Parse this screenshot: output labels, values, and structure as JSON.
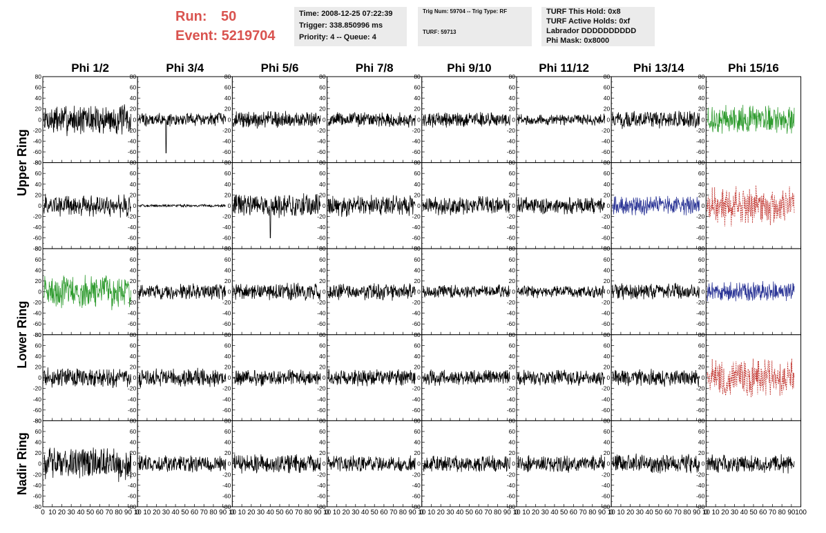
{
  "header": {
    "run_label": "Run:",
    "run_value": "50",
    "event_label": "Event:",
    "event_value": "5219704",
    "box1": [
      "Time: 2008-12-25 07:22:39",
      "Trigger: 338.850996 ms",
      "Priority: 4 -- Queue: 4"
    ],
    "box2": [
      "Trig Num: 59704 -- Trig Type: RF",
      "",
      "",
      "TURF: 59713"
    ],
    "box3": [
      "TURF This Hold: 0x8",
      "TURF Active Holds: 0xf",
      "Labrador DDDDDDDDDD",
      "Phi Mask: 0x8000"
    ]
  },
  "colors": {
    "normal": "#000000",
    "green": "#2e9b2e",
    "blue": "#2b3596",
    "red": "#c0302a"
  },
  "chart_data": {
    "type": "line",
    "columns": [
      "Phi 1/2",
      "Phi 3/4",
      "Phi 5/6",
      "Phi 7/8",
      "Phi 9/10",
      "Phi 11/12",
      "Phi 13/14",
      "Phi 15/16"
    ],
    "row_groups": [
      {
        "label": "Upper Ring",
        "rows": [
          0,
          1
        ]
      },
      {
        "label": "Lower Ring",
        "rows": [
          2,
          3
        ]
      },
      {
        "label": "Nadir Ring",
        "rows": [
          4
        ]
      }
    ],
    "xlim": [
      0,
      100
    ],
    "x_ticks": [
      "0",
      "10",
      "20",
      "30",
      "40",
      "50",
      "60",
      "70",
      "80",
      "90",
      "100"
    ],
    "x_ticks_compact": [
      "0",
      "10",
      "20",
      "30",
      "40",
      "50",
      "60",
      "70",
      "80",
      "90",
      "10"
    ],
    "ylim": [
      -80,
      80
    ],
    "y_ticks": [
      -80,
      -60,
      -40,
      -20,
      0,
      20,
      40,
      60,
      80
    ],
    "panels": [
      [
        {
          "amp": 22,
          "color": "normal"
        },
        {
          "amp": 10,
          "color": "normal",
          "spike": {
            "x": 30,
            "y": -62
          }
        },
        {
          "amp": 12,
          "color": "normal"
        },
        {
          "amp": 11,
          "color": "normal"
        },
        {
          "amp": 11,
          "color": "normal"
        },
        {
          "amp": 8,
          "color": "normal"
        },
        {
          "amp": 12,
          "color": "normal"
        },
        {
          "amp": 20,
          "color": "green"
        }
      ],
      [
        {
          "amp": 16,
          "color": "normal"
        },
        {
          "amp": 2,
          "color": "normal"
        },
        {
          "amp": 17,
          "color": "normal",
          "spike": {
            "x": 40,
            "y": -60
          }
        },
        {
          "amp": 15,
          "color": "normal"
        },
        {
          "amp": 13,
          "color": "normal"
        },
        {
          "amp": 12,
          "color": "normal"
        },
        {
          "amp": 14,
          "color": "blue"
        },
        {
          "amp": 28,
          "color": "red",
          "dashed": true
        }
      ],
      [
        {
          "amp": 24,
          "color": "green"
        },
        {
          "amp": 11,
          "color": "normal"
        },
        {
          "amp": 12,
          "color": "normal"
        },
        {
          "amp": 12,
          "color": "normal"
        },
        {
          "amp": 10,
          "color": "normal"
        },
        {
          "amp": 9,
          "color": "normal"
        },
        {
          "amp": 12,
          "color": "normal"
        },
        {
          "amp": 14,
          "color": "blue"
        }
      ],
      [
        {
          "amp": 14,
          "color": "normal"
        },
        {
          "amp": 13,
          "color": "normal"
        },
        {
          "amp": 12,
          "color": "normal"
        },
        {
          "amp": 12,
          "color": "normal"
        },
        {
          "amp": 11,
          "color": "normal"
        },
        {
          "amp": 11,
          "color": "normal"
        },
        {
          "amp": 13,
          "color": "normal"
        },
        {
          "amp": 27,
          "color": "red",
          "dashed": true
        }
      ],
      [
        {
          "amp": 24,
          "color": "normal"
        },
        {
          "amp": 12,
          "color": "normal"
        },
        {
          "amp": 14,
          "color": "normal"
        },
        {
          "amp": 12,
          "color": "normal"
        },
        {
          "amp": 12,
          "color": "normal"
        },
        {
          "amp": 12,
          "color": "normal"
        },
        {
          "amp": 14,
          "color": "normal"
        },
        {
          "amp": 13,
          "color": "normal"
        }
      ]
    ]
  }
}
